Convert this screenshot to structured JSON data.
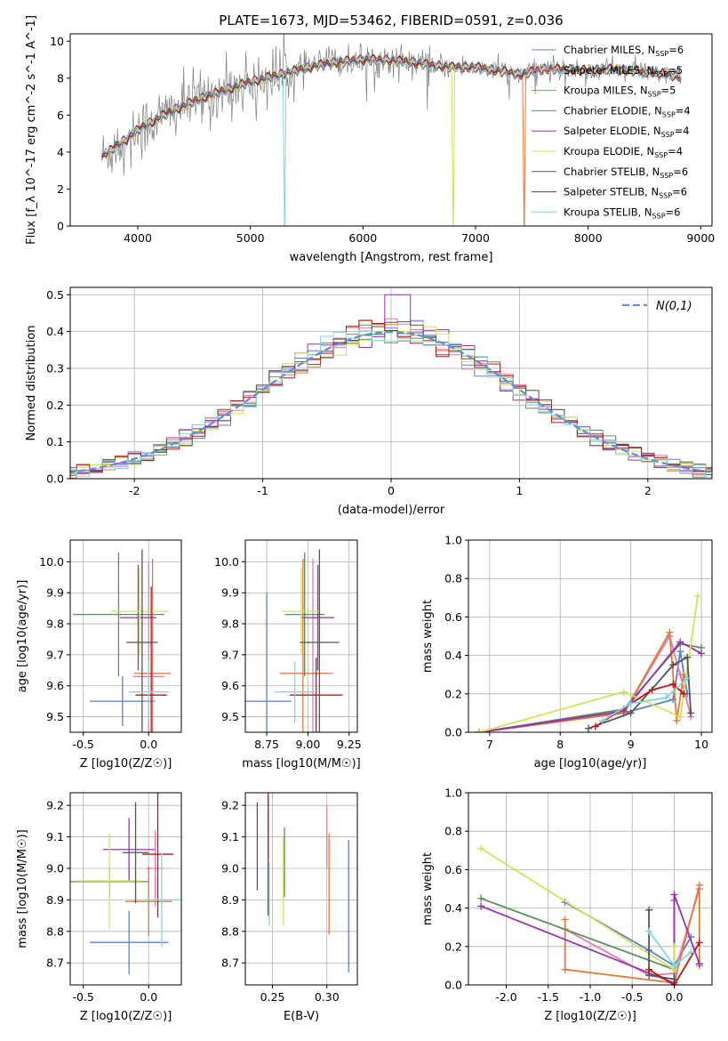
{
  "figure": {
    "title": "PLATE=1673, MJD=53462, FIBERID=0591, z=0.036"
  },
  "models": [
    {
      "name": "Chabrier MILES, N$_{SSP}$=6",
      "label": "Chabrier MILES, N",
      "sub": "SSP",
      "suffix": "=6",
      "color": "#5b7fd6"
    },
    {
      "name": "Salpeter MILES, N$_{SSP}$=5",
      "label": "Salpeter MILES, N",
      "sub": "SSP",
      "suffix": "=5",
      "color": "#e87ab0"
    },
    {
      "name": "Kroupa MILES, N$_{SSP}$=5",
      "label": "Kroupa MILES, N",
      "sub": "SSP",
      "suffix": "=5",
      "color": "#e07b39"
    },
    {
      "name": "Chabrier ELODIE, N$_{SSP}$=4",
      "label": "Chabrier ELODIE, N",
      "sub": "SSP",
      "suffix": "=4",
      "color": "#5a8f5a"
    },
    {
      "name": "Salpeter ELODIE, N$_{SSP}$=4",
      "label": "Salpeter ELODIE, N",
      "sub": "SSP",
      "suffix": "=4",
      "color": "#9b30b0"
    },
    {
      "name": "Kroupa ELODIE, N$_{SSP}$=4",
      "label": "Kroupa ELODIE, N",
      "sub": "SSP",
      "suffix": "=4",
      "color": "#d4e157"
    },
    {
      "name": "Chabrier STELIB, N$_{SSP}$=6",
      "label": "Chabrier STELIB, N",
      "sub": "SSP",
      "suffix": "=6",
      "color": "#555555"
    },
    {
      "name": "Salpeter STELIB, N$_{SSP}$=6",
      "label": "Salpeter STELIB, N",
      "sub": "SSP",
      "suffix": "=6",
      "color": "#b01c1c"
    },
    {
      "name": "Kroupa STELIB, N$_{SSP}$=6",
      "label": "Kroupa STELIB, N",
      "sub": "SSP",
      "suffix": "=6",
      "color": "#7fd8e0"
    }
  ],
  "chart_data": [
    {
      "id": "spectrum",
      "type": "line",
      "xlabel": "wavelength [Angstrom, rest frame]",
      "ylabel": "Flux [f_λ 10^-17 erg cm^-2 s^-1 A^-1]",
      "xlim": [
        3400,
        9100
      ],
      "ylim": [
        0,
        10.4
      ],
      "xticks": [
        4000,
        5000,
        6000,
        7000,
        8000,
        9000
      ],
      "yticks": [
        0,
        2,
        4,
        6,
        8,
        10
      ],
      "grid": false,
      "legend": "top-right",
      "data_color": "#808080",
      "continuum": {
        "x": [
          3700,
          3800,
          3900,
          4000,
          4200,
          4400,
          4600,
          4800,
          5000,
          5200,
          5400,
          5600,
          5800,
          6000,
          6200,
          6400,
          6600,
          6800,
          7000,
          7200,
          7400,
          7600,
          7800,
          8000,
          8200,
          8400,
          8600,
          8800
        ],
        "y": [
          3.8,
          4.3,
          4.7,
          5.2,
          5.9,
          6.5,
          7.0,
          7.4,
          7.8,
          8.1,
          8.4,
          8.7,
          8.9,
          9.0,
          9.0,
          8.9,
          8.7,
          8.6,
          8.6,
          8.4,
          8.2,
          8.5,
          8.5,
          8.4,
          8.5,
          8.4,
          8.3,
          8.1
        ]
      },
      "notes_dips": [
        {
          "model": 2,
          "x": 7430
        },
        {
          "model": 5,
          "x": 6800
        },
        {
          "model": 8,
          "x": 5300
        }
      ]
    },
    {
      "id": "residuals",
      "type": "line",
      "xlabel": "(data-model)/error",
      "ylabel": "Normed distribution",
      "xlim": [
        -2.5,
        2.5
      ],
      "ylim": [
        0,
        0.52
      ],
      "xticks": [
        -2,
        -1,
        0,
        1,
        2
      ],
      "yticks": [
        0.0,
        0.1,
        0.2,
        0.3,
        0.4,
        0.5
      ],
      "grid": true,
      "legend": "top-right",
      "reference": {
        "name": "N(0,1)",
        "color": "#5b8fd6"
      }
    },
    {
      "id": "age-vs-Z",
      "type": "scatter",
      "xlabel": "Z [log10(Z/Z☉)]",
      "ylabel": "age [log10(age/yr)]",
      "xlim": [
        -0.6,
        0.25
      ],
      "ylim": [
        9.45,
        10.07
      ],
      "xticks": [
        -0.5,
        0.0
      ],
      "yticks": [
        9.5,
        9.6,
        9.7,
        9.8,
        9.9,
        10.0
      ],
      "grid": true,
      "points": [
        {
          "m": 0,
          "x": -0.2,
          "y": 9.55,
          "xe": 0.25,
          "ye": 0.08
        },
        {
          "m": 1,
          "x": 0.0,
          "y": 9.63,
          "xe": 0.12,
          "ye": 0.37
        },
        {
          "m": 2,
          "x": 0.03,
          "y": 9.64,
          "xe": 0.14,
          "ye": 0.37
        },
        {
          "m": 3,
          "x": -0.23,
          "y": 9.83,
          "xe": 0.35,
          "ye": 0.2
        },
        {
          "m": 4,
          "x": -0.08,
          "y": 9.82,
          "xe": 0.14,
          "ye": 0.17
        },
        {
          "m": 5,
          "x": -0.07,
          "y": 9.84,
          "xe": 0.22,
          "ye": 0.14
        },
        {
          "m": 6,
          "x": -0.05,
          "y": 9.74,
          "xe": 0.12,
          "ye": 0.3
        },
        {
          "m": 7,
          "x": 0.02,
          "y": 9.57,
          "xe": 0.12,
          "ye": 0.35
        },
        {
          "m": 8,
          "x": 0.0,
          "y": 9.58,
          "xe": 0.15,
          "ye": 0.1
        }
      ]
    },
    {
      "id": "age-vs-mass",
      "type": "scatter",
      "xlabel": "mass [log10(M/M☉)]",
      "ylabel": "",
      "xlim": [
        8.62,
        9.3
      ],
      "ylim": [
        9.45,
        10.07
      ],
      "xticks": [
        8.75,
        9.0,
        9.25
      ],
      "yticks": [
        9.5,
        9.6,
        9.7,
        9.8,
        9.9,
        10.0
      ],
      "grid": true,
      "points": [
        {
          "m": 0,
          "x": 8.75,
          "y": 9.55,
          "xe": 0.15,
          "ye": 0.35
        },
        {
          "m": 1,
          "x": 9.03,
          "y": 9.64,
          "xe": 0.12,
          "ye": 0.37
        },
        {
          "m": 2,
          "x": 8.97,
          "y": 9.64,
          "xe": 0.14,
          "ye": 0.37
        },
        {
          "m": 3,
          "x": 8.98,
          "y": 9.83,
          "xe": 0.12,
          "ye": 0.2
        },
        {
          "m": 4,
          "x": 9.06,
          "y": 9.82,
          "xe": 0.1,
          "ye": 0.17
        },
        {
          "m": 5,
          "x": 8.96,
          "y": 9.84,
          "xe": 0.12,
          "ye": 0.14
        },
        {
          "m": 6,
          "x": 9.07,
          "y": 9.74,
          "xe": 0.12,
          "ye": 0.3
        },
        {
          "m": 7,
          "x": 9.05,
          "y": 9.57,
          "xe": 0.16,
          "ye": 0.12
        },
        {
          "m": 8,
          "x": 8.92,
          "y": 9.58,
          "xe": 0.12,
          "ye": 0.1
        }
      ]
    },
    {
      "id": "weight-vs-age",
      "type": "line",
      "xlabel": "age [log10(age/yr)]",
      "ylabel": "mass weight",
      "xlim": [
        6.7,
        10.15
      ],
      "ylim": [
        0,
        1
      ],
      "xticks": [
        7,
        8,
        9,
        10
      ],
      "yticks": [
        0.0,
        0.2,
        0.4,
        0.6,
        0.8,
        1.0
      ],
      "grid": true,
      "series": [
        {
          "m": 0,
          "x": [
            6.85,
            8.9,
            9.6,
            9.7,
            9.8
          ],
          "y": [
            0.0,
            0.1,
            0.17,
            0.42,
            0.2
          ]
        },
        {
          "m": 1,
          "x": [
            6.85,
            8.9,
            9.55,
            9.7,
            9.85
          ],
          "y": [
            0.0,
            0.1,
            0.5,
            0.3,
            0.08
          ]
        },
        {
          "m": 2,
          "x": [
            6.85,
            8.9,
            9.55,
            9.65,
            9.75
          ],
          "y": [
            0.0,
            0.1,
            0.52,
            0.06,
            0.3
          ]
        },
        {
          "m": 3,
          "x": [
            6.85,
            8.9,
            9.7,
            10.0
          ],
          "y": [
            0.0,
            0.12,
            0.46,
            0.44
          ]
        },
        {
          "m": 4,
          "x": [
            6.85,
            8.9,
            9.7,
            10.0
          ],
          "y": [
            0.0,
            0.11,
            0.47,
            0.41
          ]
        },
        {
          "m": 5,
          "x": [
            6.85,
            8.9,
            9.7,
            9.95
          ],
          "y": [
            0.0,
            0.21,
            0.08,
            0.71
          ]
        },
        {
          "m": 6,
          "x": [
            8.4,
            9.0,
            9.6,
            9.8,
            9.85
          ],
          "y": [
            0.02,
            0.1,
            0.35,
            0.39,
            0.1
          ]
        },
        {
          "m": 7,
          "x": [
            8.5,
            9.3,
            9.6,
            9.75
          ],
          "y": [
            0.03,
            0.22,
            0.25,
            0.2
          ]
        },
        {
          "m": 8,
          "x": [
            8.6,
            9.0,
            9.5,
            9.8
          ],
          "y": [
            0.06,
            0.15,
            0.18,
            0.28
          ]
        }
      ]
    },
    {
      "id": "mass-vs-Z",
      "type": "scatter",
      "xlabel": "Z [log10(Z/Z☉)]",
      "ylabel": "mass [log10(M/M☉)]",
      "xlim": [
        -0.6,
        0.25
      ],
      "ylim": [
        8.63,
        9.24
      ],
      "xticks": [
        -0.5,
        0.0
      ],
      "yticks": [
        8.7,
        8.8,
        8.9,
        9.0,
        9.1,
        9.2
      ],
      "grid": true,
      "points": [
        {
          "m": 0,
          "x": -0.15,
          "y": 8.765,
          "xe": 0.3,
          "ye": 0.1
        },
        {
          "m": 1,
          "x": 0.05,
          "y": 9.0,
          "xe": 0.07,
          "ye": 0.12
        },
        {
          "m": 2,
          "x": 0.0,
          "y": 8.895,
          "xe": 0.18,
          "ye": 0.11
        },
        {
          "m": 3,
          "x": -0.3,
          "y": 8.958,
          "xe": 0.3,
          "ye": 0.05
        },
        {
          "m": 4,
          "x": -0.15,
          "y": 9.06,
          "xe": 0.2,
          "ye": 0.1
        },
        {
          "m": 5,
          "x": -0.3,
          "y": 8.96,
          "xe": 0.25,
          "ye": 0.15
        },
        {
          "m": 6,
          "x": -0.1,
          "y": 9.05,
          "xe": 0.1,
          "ye": 0.16
        },
        {
          "m": 7,
          "x": 0.07,
          "y": 9.045,
          "xe": 0.12,
          "ye": 0.2
        },
        {
          "m": 8,
          "x": 0.1,
          "y": 8.9,
          "xe": 0.15,
          "ye": 0.15
        }
      ]
    },
    {
      "id": "mass-vs-EBV",
      "type": "scatter",
      "xlabel": "E(B-V)",
      "ylabel": "",
      "xlim": [
        0.225,
        0.328
      ],
      "ylim": [
        8.63,
        9.24
      ],
      "xticks": [
        0.25,
        0.3
      ],
      "yticks": [
        8.7,
        8.8,
        8.9,
        9.0,
        9.1,
        9.2
      ],
      "grid": true,
      "points": [
        {
          "m": 0,
          "x": 0.32,
          "y": 8.88,
          "xe": 0,
          "ye": 0.21
        },
        {
          "m": 1,
          "x": 0.3,
          "y": 9.1,
          "xe": 0,
          "ye": 0.1
        },
        {
          "m": 2,
          "x": 0.302,
          "y": 8.95,
          "xe": 0,
          "ye": 0.16
        },
        {
          "m": 3,
          "x": 0.261,
          "y": 9.02,
          "xe": 0,
          "ye": 0.11
        },
        {
          "m": 4,
          "x": 0.246,
          "y": 9.13,
          "xe": 0,
          "ye": 0.1
        },
        {
          "m": 5,
          "x": 0.26,
          "y": 8.96,
          "xe": 0,
          "ye": 0.14
        },
        {
          "m": 6,
          "x": 0.236,
          "y": 9.07,
          "xe": 0,
          "ye": 0.14
        },
        {
          "m": 7,
          "x": 0.246,
          "y": 9.05,
          "xe": 0,
          "ye": 0.2
        },
        {
          "m": 8,
          "x": 0.247,
          "y": 8.92,
          "xe": 0,
          "ye": 0.1
        }
      ]
    },
    {
      "id": "weight-vs-Z",
      "type": "line",
      "xlabel": "Z [log10(Z/Z☉)]",
      "ylabel": "mass weight",
      "xlim": [
        -2.45,
        0.45
      ],
      "ylim": [
        0,
        1
      ],
      "xticks": [
        -2.0,
        -1.5,
        -1.0,
        -0.5,
        0.0
      ],
      "yticks": [
        0.0,
        0.2,
        0.4,
        0.6,
        0.8,
        1.0
      ],
      "grid": true,
      "series": [
        {
          "m": 0,
          "x": [
            -1.3,
            -0.3,
            0.0,
            0.2
          ],
          "y": [
            0.43,
            0.18,
            0.1,
            0.25
          ]
        },
        {
          "m": 1,
          "x": [
            -1.3,
            -0.3,
            0.0,
            0.3
          ],
          "y": [
            0.29,
            0.05,
            0.06,
            0.5
          ]
        },
        {
          "m": 2,
          "x": [
            -1.3,
            -1.3,
            0.0,
            0.3,
            0.3
          ],
          "y": [
            0.34,
            0.08,
            0.01,
            0.52,
            0.1
          ]
        },
        {
          "m": 3,
          "x": [
            -2.3,
            0.0,
            0.0
          ],
          "y": [
            0.45,
            0.08,
            0.44
          ]
        },
        {
          "m": 4,
          "x": [
            -2.3,
            0.0,
            0.0,
            0.3
          ],
          "y": [
            0.41,
            0.01,
            0.47,
            0.11
          ]
        },
        {
          "m": 5,
          "x": [
            -2.3,
            0.0,
            0.0
          ],
          "y": [
            0.71,
            0.08,
            0.2
          ]
        },
        {
          "m": 6,
          "x": [
            -0.3,
            -0.3,
            0.0
          ],
          "y": [
            0.39,
            0.05,
            0.03
          ]
        },
        {
          "m": 7,
          "x": [
            -0.3,
            0.0,
            0.3
          ],
          "y": [
            0.08,
            0.0,
            0.22
          ]
        },
        {
          "m": 8,
          "x": [
            -0.3,
            0.0,
            0.2
          ],
          "y": [
            0.28,
            0.1,
            0.17
          ]
        }
      ]
    }
  ]
}
